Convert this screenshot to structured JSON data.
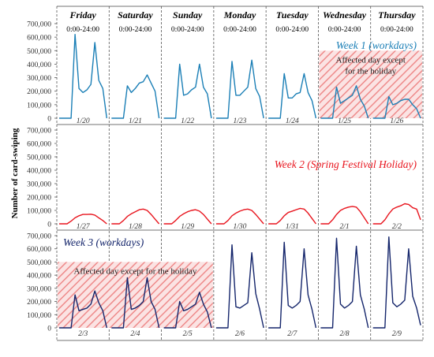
{
  "chart_data": {
    "type": "line",
    "ylabel": "Number of card-swiping",
    "ylim": [
      0,
      700000
    ],
    "yticks": [
      0,
      100000,
      200000,
      300000,
      400000,
      500000,
      600000,
      700000
    ],
    "ytick_labels": [
      "0",
      "100,000",
      "200,000",
      "300,000",
      "400,000",
      "500,000",
      "600,000",
      "700,000"
    ],
    "columns": [
      {
        "day": "Friday",
        "hours": "0:00-24:00"
      },
      {
        "day": "Saturday",
        "hours": "0:00-24:00"
      },
      {
        "day": "Sunday",
        "hours": "0:00-24:00"
      },
      {
        "day": "Monday",
        "hours": "0:00-24:00"
      },
      {
        "day": "Tuesday",
        "hours": "0:00-24:00"
      },
      {
        "day": "Wednesday",
        "hours": "0:00-24:00"
      },
      {
        "day": "Thursday",
        "hours": "0:00-24:00"
      }
    ],
    "hours": [
      0,
      2,
      4,
      6,
      8,
      10,
      12,
      14,
      16,
      18,
      20,
      22,
      24
    ],
    "panels": [
      {
        "name": "Week 1 (workdays)",
        "color": "#1b7fb6",
        "affected": {
          "label": "Affected day except for the holiday",
          "label_lines": [
            "Affected day except",
            "for the holiday"
          ],
          "from_day": 5,
          "to_day": 7
        },
        "days": [
          {
            "date": "1/20",
            "values": [
              0,
              0,
              0,
              0,
              620000,
              220000,
              190000,
              210000,
              250000,
              560000,
              280000,
              220000,
              0
            ]
          },
          {
            "date": "1/21",
            "values": [
              0,
              0,
              0,
              0,
              240000,
              190000,
              220000,
              260000,
              270000,
              320000,
              260000,
              200000,
              0
            ]
          },
          {
            "date": "1/22",
            "values": [
              0,
              0,
              0,
              0,
              400000,
              170000,
              180000,
              210000,
              230000,
              400000,
              230000,
              180000,
              0
            ]
          },
          {
            "date": "1/23",
            "values": [
              0,
              0,
              0,
              0,
              420000,
              170000,
              170000,
              200000,
              230000,
              430000,
              220000,
              160000,
              0
            ]
          },
          {
            "date": "1/24",
            "values": [
              0,
              0,
              0,
              0,
              330000,
              150000,
              150000,
              180000,
              190000,
              330000,
              190000,
              130000,
              0
            ]
          },
          {
            "date": "1/25",
            "values": [
              0,
              0,
              0,
              0,
              230000,
              110000,
              130000,
              150000,
              170000,
              240000,
              140000,
              90000,
              0
            ]
          },
          {
            "date": "1/26",
            "values": [
              0,
              0,
              0,
              0,
              160000,
              100000,
              110000,
              130000,
              140000,
              140000,
              100000,
              70000,
              0
            ]
          }
        ]
      },
      {
        "name": "Week 2 (Spring Festival Holiday)",
        "color": "#e8141d",
        "days": [
          {
            "date": "1/27",
            "values": [
              0,
              0,
              0,
              20000,
              45000,
              60000,
              70000,
              70000,
              72000,
              65000,
              45000,
              25000,
              0
            ]
          },
          {
            "date": "1/28",
            "values": [
              0,
              0,
              0,
              25000,
              55000,
              75000,
              90000,
              105000,
              110000,
              100000,
              70000,
              35000,
              0
            ]
          },
          {
            "date": "1/29",
            "values": [
              0,
              0,
              0,
              25000,
              55000,
              75000,
              90000,
              100000,
              105000,
              95000,
              70000,
              35000,
              0
            ]
          },
          {
            "date": "1/30",
            "values": [
              0,
              0,
              0,
              25000,
              60000,
              80000,
              95000,
              105000,
              110000,
              100000,
              70000,
              35000,
              0
            ]
          },
          {
            "date": "1/31",
            "values": [
              0,
              0,
              0,
              25000,
              60000,
              85000,
              95000,
              105000,
              115000,
              110000,
              80000,
              40000,
              0
            ]
          },
          {
            "date": "2/1",
            "values": [
              0,
              0,
              0,
              30000,
              70000,
              100000,
              115000,
              125000,
              130000,
              125000,
              90000,
              45000,
              0
            ]
          },
          {
            "date": "2/2",
            "values": [
              0,
              0,
              0,
              30000,
              75000,
              110000,
              125000,
              135000,
              150000,
              145000,
              120000,
              110000,
              30000
            ]
          }
        ]
      },
      {
        "name": "Week 3 (workdays)",
        "color": "#14256b",
        "affected": {
          "label": "Affected day except for the holiday",
          "label_lines": [
            "Affected day except for the holiday"
          ],
          "from_day": 0,
          "to_day": 3
        },
        "days": [
          {
            "date": "2/3",
            "values": [
              0,
              0,
              0,
              0,
              250000,
              130000,
              140000,
              150000,
              180000,
              280000,
              190000,
              130000,
              0
            ]
          },
          {
            "date": "2/4",
            "values": [
              0,
              0,
              0,
              0,
              380000,
              140000,
              150000,
              170000,
              200000,
              380000,
              200000,
              140000,
              0
            ]
          },
          {
            "date": "2/5",
            "values": [
              0,
              0,
              0,
              0,
              200000,
              130000,
              140000,
              160000,
              180000,
              270000,
              180000,
              120000,
              0
            ]
          },
          {
            "date": "2/6",
            "values": [
              0,
              0,
              0,
              0,
              630000,
              160000,
              150000,
              170000,
              190000,
              570000,
              260000,
              140000,
              0
            ]
          },
          {
            "date": "2/7",
            "values": [
              0,
              0,
              0,
              0,
              650000,
              170000,
              150000,
              170000,
              200000,
              600000,
              250000,
              140000,
              0
            ]
          },
          {
            "date": "2/8",
            "values": [
              0,
              0,
              0,
              0,
              680000,
              180000,
              150000,
              170000,
              200000,
              620000,
              250000,
              140000,
              0
            ]
          },
          {
            "date": "2/9",
            "values": [
              0,
              0,
              0,
              0,
              690000,
              190000,
              160000,
              180000,
              210000,
              600000,
              240000,
              150000,
              20000
            ]
          }
        ]
      }
    ]
  }
}
